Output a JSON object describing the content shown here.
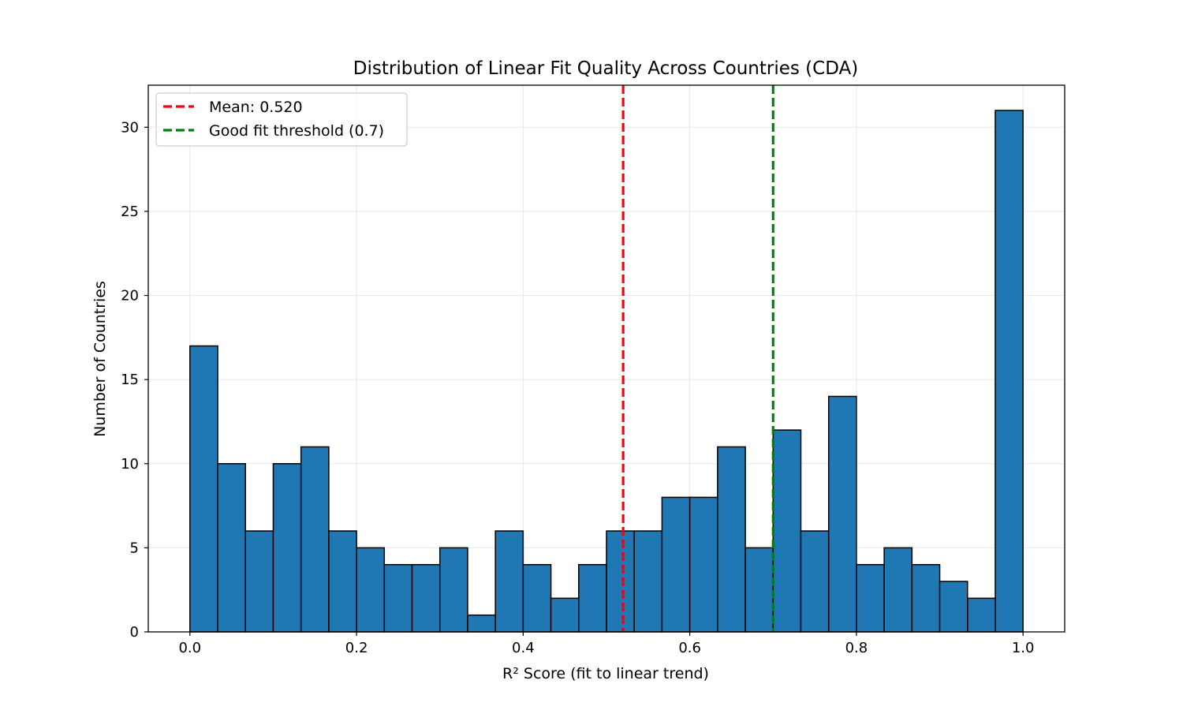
{
  "chart_data": {
    "type": "bar",
    "title": "Distribution of Linear Fit Quality Across Countries (CDA)",
    "xlabel": "R² Score (fit to linear trend)",
    "ylabel": "Number of Countries",
    "xlim": [
      -0.05,
      1.05
    ],
    "ylim": [
      0,
      32.5
    ],
    "xticks": [
      "0.0",
      "0.2",
      "0.4",
      "0.6",
      "0.8",
      "1.0"
    ],
    "yticks": [
      "0",
      "5",
      "10",
      "15",
      "20",
      "25",
      "30"
    ],
    "bins": 30,
    "bin_range": [
      0,
      1
    ],
    "values": [
      17,
      10,
      6,
      10,
      11,
      6,
      5,
      4,
      4,
      5,
      1,
      6,
      4,
      2,
      4,
      6,
      6,
      8,
      8,
      11,
      5,
      12,
      6,
      14,
      4,
      5,
      4,
      3,
      2,
      31
    ],
    "bar_color": "#1f77b4",
    "edge_color": "#000000",
    "grid": true,
    "legend_position": "top-left",
    "reference_lines": [
      {
        "label": "Mean: 0.520",
        "x": 0.52,
        "color": "#ff0000",
        "style": "dashed"
      },
      {
        "label": "Good fit threshold (0.7)",
        "x": 0.7,
        "color": "#008000",
        "style": "dashed"
      }
    ]
  }
}
